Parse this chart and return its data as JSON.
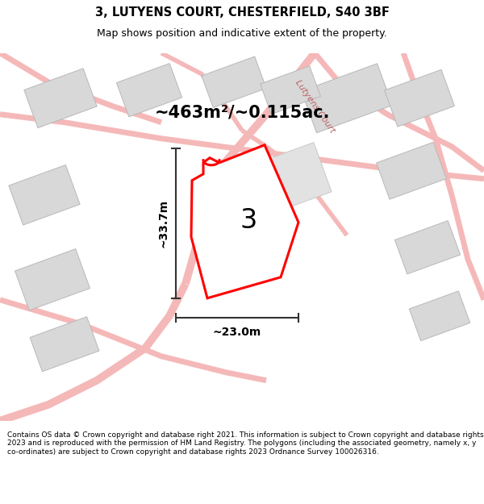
{
  "title": "3, LUTYENS COURT, CHESTERFIELD, S40 3BF",
  "subtitle": "Map shows position and indicative extent of the property.",
  "area_text": "~463m²/~0.115ac.",
  "width_label": "~23.0m",
  "height_label": "~33.7m",
  "plot_number": "3",
  "footer": "Contains OS data © Crown copyright and database right 2021. This information is subject to Crown copyright and database rights 2023 and is reproduced with the permission of HM Land Registry. The polygons (including the associated geometry, namely x, y co-ordinates) are subject to Crown copyright and database rights 2023 Ordnance Survey 100026316.",
  "background_color": "#ffffff",
  "map_bg_color": "#ffffff",
  "building_color": "#d8d8d8",
  "building_edge_color": "#b8b8b8",
  "road_color": "#f5b8b8",
  "plot_outline_color": "#ff0000",
  "plot_fill_color": "#ffffff",
  "dim_line_color": "#333333",
  "road_label_color": "#bb6666",
  "street_label": "Lutyens Court"
}
